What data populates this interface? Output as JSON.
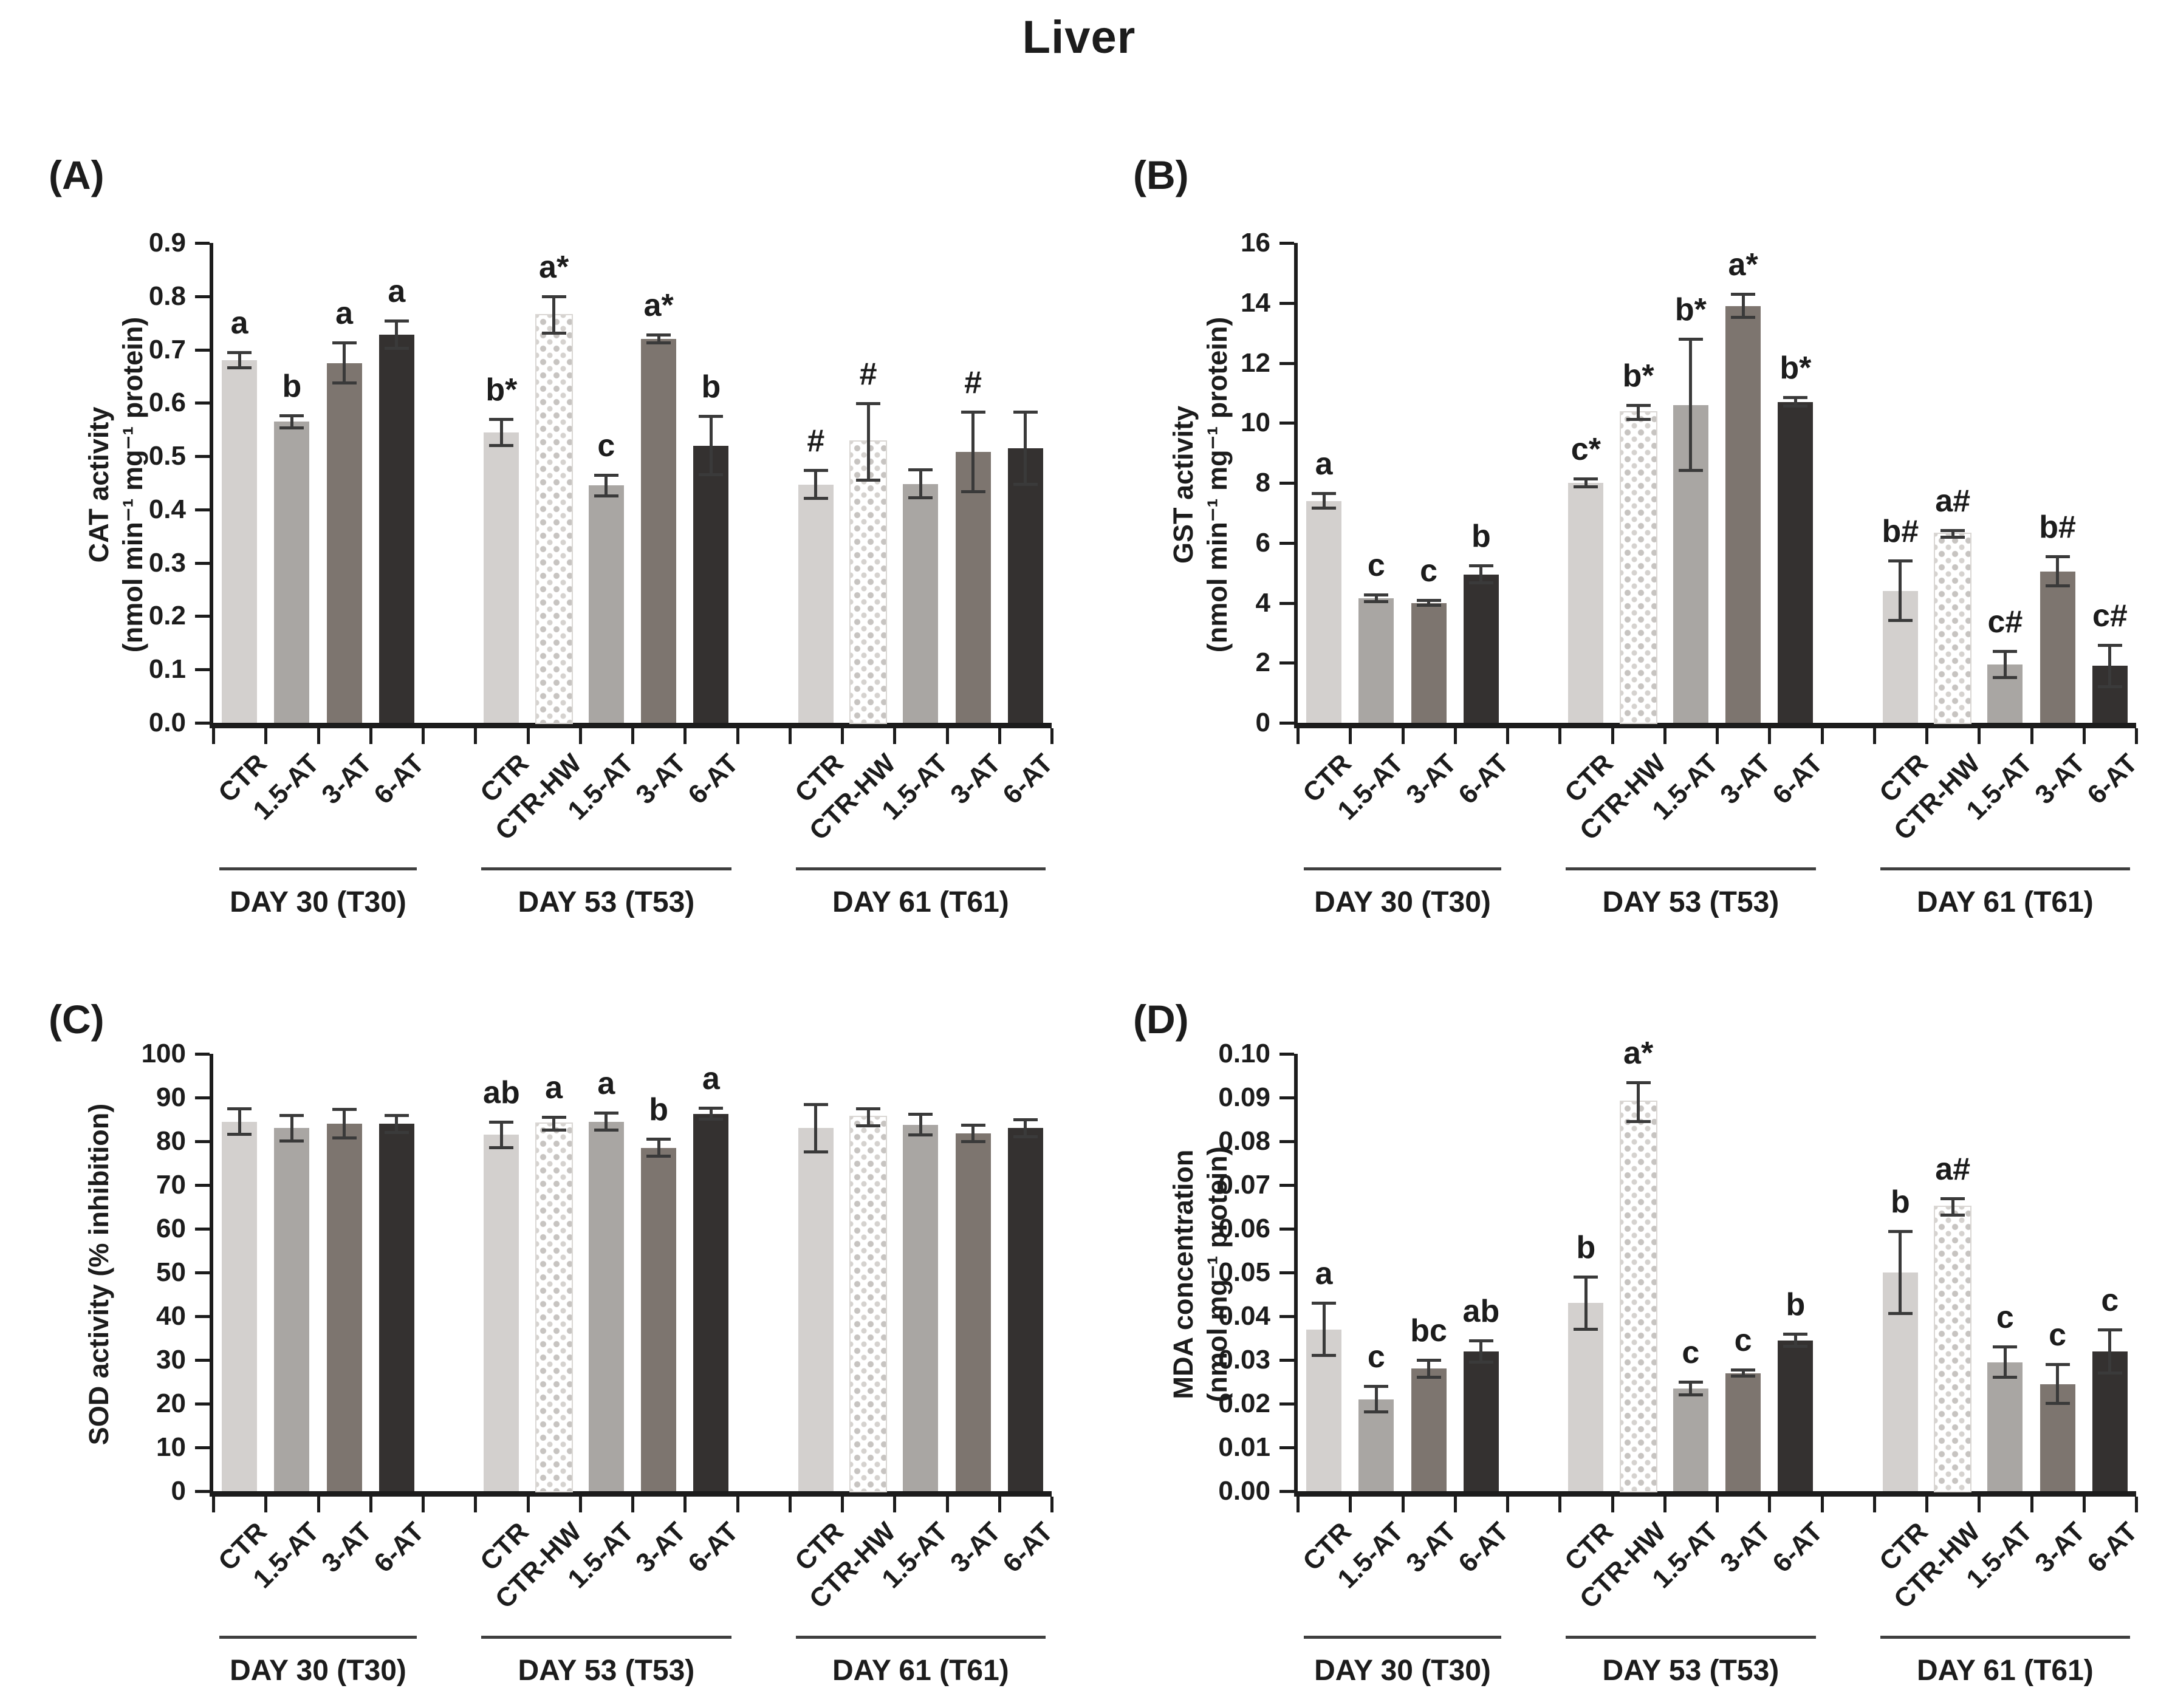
{
  "page_title": "Liver",
  "axis_color": "#1c1c1c",
  "bar_styles": {
    "CTR": {
      "fill": "#d3d0ce",
      "pattern": false
    },
    "CTR-HW": {
      "fill": "#ffffff",
      "pattern": true,
      "dot_color": "#c7c4c1"
    },
    "1.5-AT": {
      "fill": "#a9a6a3",
      "pattern": false
    },
    "3-AT": {
      "fill": "#7d756f",
      "pattern": false
    },
    "6-AT": {
      "fill": "#343130",
      "pattern": false
    }
  },
  "group_labels": [
    "DAY 30 (T30)",
    "DAY 53 (T53)",
    "DAY 61 (T61)"
  ],
  "chart_data": [
    {
      "type": "bar",
      "panel_label": "(A)",
      "ylabel_lines": [
        "CAT activity",
        "(nmol min⁻¹ mg⁻¹ protein)"
      ],
      "ylim": [
        0,
        0.9
      ],
      "yticks": [
        "0.0",
        "0.1",
        "0.2",
        "0.3",
        "0.4",
        "0.5",
        "0.6",
        "0.7",
        "0.8",
        "0.9"
      ],
      "groups": [
        {
          "label": "DAY 30 (T30)",
          "bars": [
            {
              "category": "CTR",
              "value": 0.68,
              "err": 0.015,
              "letter": "a"
            },
            {
              "category": "1.5-AT",
              "value": 0.565,
              "err": 0.012,
              "letter": "b"
            },
            {
              "category": "3-AT",
              "value": 0.675,
              "err": 0.038,
              "letter": "a"
            },
            {
              "category": "6-AT",
              "value": 0.728,
              "err": 0.026,
              "letter": "a"
            }
          ]
        },
        {
          "label": "DAY 53 (T53)",
          "bars": [
            {
              "category": "CTR",
              "value": 0.545,
              "err": 0.025,
              "letter": "b*"
            },
            {
              "category": "CTR-HW",
              "value": 0.765,
              "err": 0.035,
              "letter": "a*"
            },
            {
              "category": "1.5-AT",
              "value": 0.445,
              "err": 0.02,
              "letter": "c"
            },
            {
              "category": "3-AT",
              "value": 0.72,
              "err": 0.008,
              "letter": "a*"
            },
            {
              "category": "6-AT",
              "value": 0.52,
              "err": 0.055,
              "letter": "b"
            }
          ]
        },
        {
          "label": "DAY 61 (T61)",
          "bars": [
            {
              "category": "CTR",
              "value": 0.447,
              "err": 0.027,
              "letter": "#"
            },
            {
              "category": "CTR-HW",
              "value": 0.527,
              "err": 0.072,
              "letter": "#"
            },
            {
              "category": "1.5-AT",
              "value": 0.448,
              "err": 0.027,
              "letter": ""
            },
            {
              "category": "3-AT",
              "value": 0.508,
              "err": 0.075,
              "letter": "#"
            },
            {
              "category": "6-AT",
              "value": 0.515,
              "err": 0.068,
              "letter": ""
            }
          ]
        }
      ]
    },
    {
      "type": "bar",
      "panel_label": "(B)",
      "ylabel_lines": [
        "GST activity",
        "(nmol min⁻¹ mg⁻¹ protein)"
      ],
      "ylim": [
        0,
        16
      ],
      "yticks": [
        "0",
        "2",
        "4",
        "6",
        "8",
        "10",
        "12",
        "14",
        "16"
      ],
      "groups": [
        {
          "label": "DAY 30 (T30)",
          "bars": [
            {
              "category": "CTR",
              "value": 7.4,
              "err": 0.25,
              "letter": "a"
            },
            {
              "category": "1.5-AT",
              "value": 4.15,
              "err": 0.12,
              "letter": "c"
            },
            {
              "category": "3-AT",
              "value": 4.0,
              "err": 0.1,
              "letter": "c"
            },
            {
              "category": "6-AT",
              "value": 4.95,
              "err": 0.3,
              "letter": "b"
            }
          ]
        },
        {
          "label": "DAY 53 (T53)",
          "bars": [
            {
              "category": "CTR",
              "value": 8.0,
              "err": 0.15,
              "letter": "c*"
            },
            {
              "category": "CTR-HW",
              "value": 10.35,
              "err": 0.25,
              "letter": "b*"
            },
            {
              "category": "1.5-AT",
              "value": 10.6,
              "err": 2.2,
              "letter": "b*"
            },
            {
              "category": "3-AT",
              "value": 13.9,
              "err": 0.4,
              "letter": "a*"
            },
            {
              "category": "6-AT",
              "value": 10.7,
              "err": 0.15,
              "letter": "b*"
            }
          ]
        },
        {
          "label": "DAY 61 (T61)",
          "bars": [
            {
              "category": "CTR",
              "value": 4.4,
              "err": 1.0,
              "letter": "b#"
            },
            {
              "category": "CTR-HW",
              "value": 6.3,
              "err": 0.12,
              "letter": "a#"
            },
            {
              "category": "1.5-AT",
              "value": 1.95,
              "err": 0.45,
              "letter": "c#"
            },
            {
              "category": "3-AT",
              "value": 5.05,
              "err": 0.5,
              "letter": "b#"
            },
            {
              "category": "6-AT",
              "value": 1.9,
              "err": 0.7,
              "letter": "c#"
            }
          ]
        }
      ]
    },
    {
      "type": "bar",
      "panel_label": "(C)",
      "ylabel_lines": [
        "SOD activity (% inhibition)"
      ],
      "ylim": [
        0,
        100
      ],
      "yticks": [
        "0",
        "10",
        "20",
        "30",
        "40",
        "50",
        "60",
        "70",
        "80",
        "90",
        "100"
      ],
      "groups": [
        {
          "label": "DAY 30 (T30)",
          "bars": [
            {
              "category": "CTR",
              "value": 84.5,
              "err": 3.0,
              "letter": ""
            },
            {
              "category": "1.5-AT",
              "value": 83.0,
              "err": 3.0,
              "letter": ""
            },
            {
              "category": "3-AT",
              "value": 84.0,
              "err": 3.3,
              "letter": ""
            },
            {
              "category": "6-AT",
              "value": 84.0,
              "err": 2.0,
              "letter": ""
            }
          ]
        },
        {
          "label": "DAY 53 (T53)",
          "bars": [
            {
              "category": "CTR",
              "value": 81.5,
              "err": 3.0,
              "letter": "ab"
            },
            {
              "category": "CTR-HW",
              "value": 84.0,
              "err": 1.5,
              "letter": "a"
            },
            {
              "category": "1.5-AT",
              "value": 84.5,
              "err": 2.0,
              "letter": "a"
            },
            {
              "category": "3-AT",
              "value": 78.5,
              "err": 2.0,
              "letter": "b"
            },
            {
              "category": "6-AT",
              "value": 86.3,
              "err": 1.3,
              "letter": "a"
            }
          ]
        },
        {
          "label": "DAY 61 (T61)",
          "bars": [
            {
              "category": "CTR",
              "value": 83.0,
              "err": 5.5,
              "letter": ""
            },
            {
              "category": "CTR-HW",
              "value": 85.5,
              "err": 2.0,
              "letter": ""
            },
            {
              "category": "1.5-AT",
              "value": 83.8,
              "err": 2.4,
              "letter": ""
            },
            {
              "category": "3-AT",
              "value": 81.8,
              "err": 2.0,
              "letter": ""
            },
            {
              "category": "6-AT",
              "value": 83.0,
              "err": 2.0,
              "letter": ""
            }
          ]
        }
      ]
    },
    {
      "type": "bar",
      "panel_label": "(D)",
      "ylabel_lines": [
        "MDA concentration",
        "(nmol mg⁻¹ protein)"
      ],
      "ylim": [
        0,
        0.1
      ],
      "yticks": [
        "0.00",
        "0.01",
        "0.02",
        "0.03",
        "0.04",
        "0.05",
        "0.06",
        "0.07",
        "0.08",
        "0.09",
        "0.10"
      ],
      "groups": [
        {
          "label": "DAY 30 (T30)",
          "bars": [
            {
              "category": "CTR",
              "value": 0.037,
              "err": 0.006,
              "letter": "a"
            },
            {
              "category": "1.5-AT",
              "value": 0.021,
              "err": 0.003,
              "letter": "c"
            },
            {
              "category": "3-AT",
              "value": 0.028,
              "err": 0.002,
              "letter": "bc"
            },
            {
              "category": "6-AT",
              "value": 0.032,
              "err": 0.0025,
              "letter": "ab"
            }
          ]
        },
        {
          "label": "DAY 53 (T53)",
          "bars": [
            {
              "category": "CTR",
              "value": 0.043,
              "err": 0.006,
              "letter": "b"
            },
            {
              "category": "CTR-HW",
              "value": 0.089,
              "err": 0.0045,
              "letter": "a*"
            },
            {
              "category": "1.5-AT",
              "value": 0.0235,
              "err": 0.0015,
              "letter": "c"
            },
            {
              "category": "3-AT",
              "value": 0.027,
              "err": 0.0008,
              "letter": "c"
            },
            {
              "category": "6-AT",
              "value": 0.0345,
              "err": 0.0015,
              "letter": "b"
            }
          ]
        },
        {
          "label": "DAY 61 (T61)",
          "bars": [
            {
              "category": "CTR",
              "value": 0.05,
              "err": 0.0095,
              "letter": "b"
            },
            {
              "category": "CTR-HW",
              "value": 0.065,
              "err": 0.002,
              "letter": "a#"
            },
            {
              "category": "1.5-AT",
              "value": 0.0295,
              "err": 0.0035,
              "letter": "c"
            },
            {
              "category": "3-AT",
              "value": 0.0245,
              "err": 0.0045,
              "letter": "c"
            },
            {
              "category": "6-AT",
              "value": 0.032,
              "err": 0.005,
              "letter": "c"
            }
          ]
        }
      ]
    }
  ]
}
